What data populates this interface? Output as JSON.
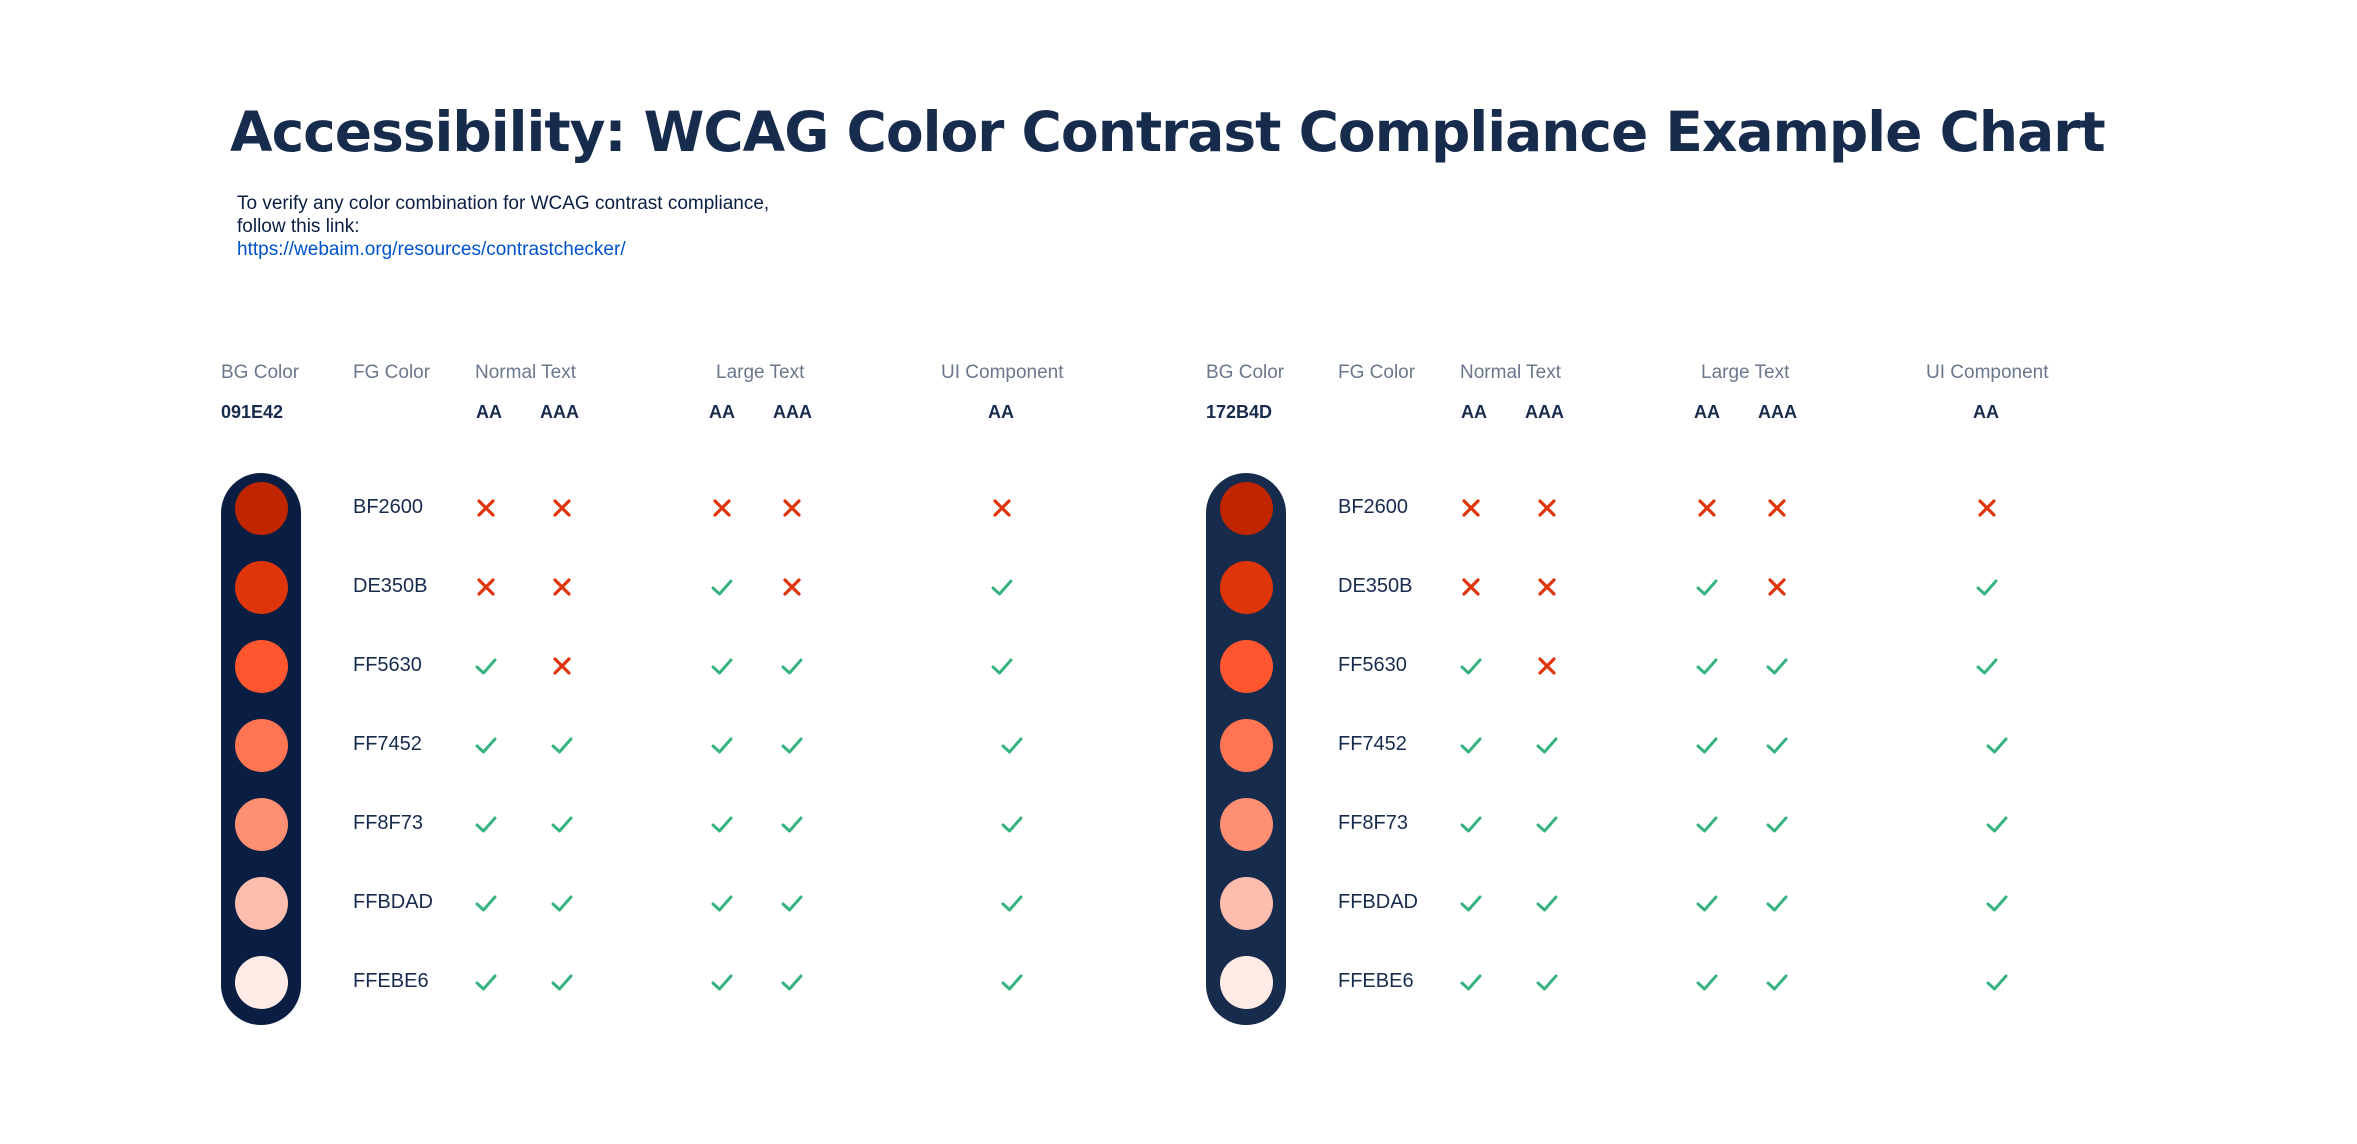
{
  "title": "Accessibility: WCAG Color Contrast Compliance Example Chart",
  "intro": {
    "line1": "To verify any color combination for WCAG contrast compliance,",
    "line2": "follow this link:",
    "link": "https://webaim.org/resources/contrastchecker/"
  },
  "headers": {
    "bg": "BG Color",
    "fg": "FG Color",
    "normal": "Normal Text",
    "large": "Large Text",
    "ui": "UI Component",
    "aa": "AA",
    "aaa": "AAA"
  },
  "colors": {
    "pass": "#36B37E",
    "fail": "#DE350B"
  },
  "rows": [
    {
      "fg": "BF2600",
      "swatch": "#BF2600"
    },
    {
      "fg": "DE350B",
      "swatch": "#DE350B"
    },
    {
      "fg": "FF5630",
      "swatch": "#FF5630"
    },
    {
      "fg": "FF7452",
      "swatch": "#FF7452"
    },
    {
      "fg": "FF8F73",
      "swatch": "#FF8F73"
    },
    {
      "fg": "FFBDAD",
      "swatch": "#FFBDAD"
    },
    {
      "fg": "FFEBE6",
      "swatch": "#FFEBE6"
    }
  ],
  "tables": [
    {
      "bg_label": "091E42",
      "bg_color": "#091E42",
      "results": [
        [
          false,
          false,
          false,
          false,
          false
        ],
        [
          false,
          false,
          true,
          false,
          true
        ],
        [
          true,
          false,
          true,
          true,
          true
        ],
        [
          true,
          true,
          true,
          true,
          true
        ],
        [
          true,
          true,
          true,
          true,
          true
        ],
        [
          true,
          true,
          true,
          true,
          true
        ],
        [
          true,
          true,
          true,
          true,
          true
        ]
      ]
    },
    {
      "bg_label": "172B4D",
      "bg_color": "#172B4D",
      "results": [
        [
          false,
          false,
          false,
          false,
          false
        ],
        [
          false,
          false,
          true,
          false,
          true
        ],
        [
          true,
          false,
          true,
          true,
          true
        ],
        [
          true,
          true,
          true,
          true,
          true
        ],
        [
          true,
          true,
          true,
          true,
          true
        ],
        [
          true,
          true,
          true,
          true,
          true
        ],
        [
          true,
          true,
          true,
          true,
          true
        ]
      ]
    }
  ]
}
